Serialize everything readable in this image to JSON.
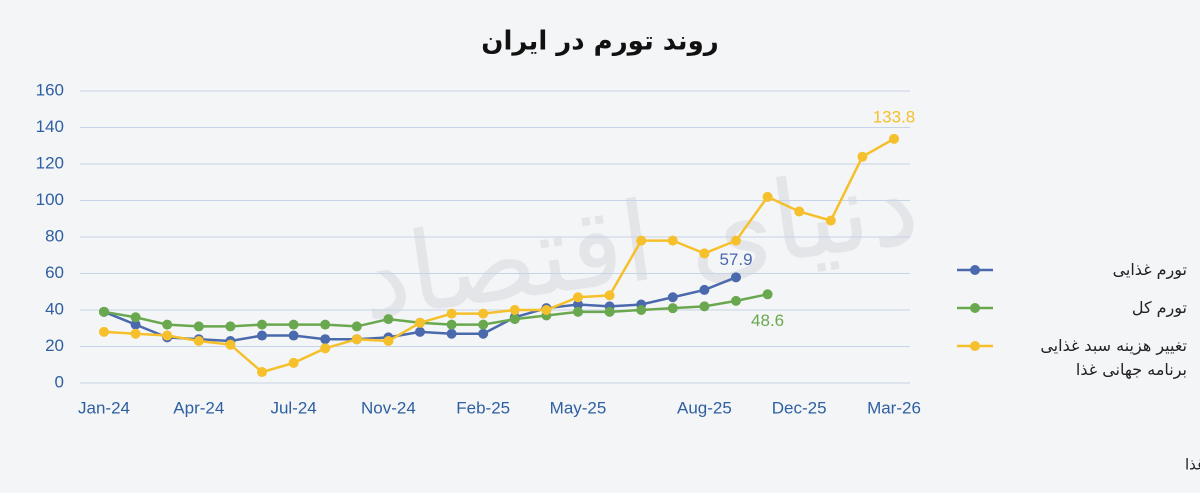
{
  "chart_data": {
    "type": "line",
    "title": "روند تورم در ایران",
    "watermark": "دنیای اقتصاد",
    "source": "منبع: برنامه جهانی غذا",
    "categories": [
      "Jan-24",
      null,
      null,
      "Apr-24",
      null,
      null,
      "Jul-24",
      null,
      null,
      "Nov-24",
      null,
      null,
      "Feb-25",
      null,
      null,
      "May-25",
      null,
      null,
      null,
      "Aug-25",
      null,
      null,
      "Dec-25",
      null,
      null,
      "Mar-26"
    ],
    "series": [
      {
        "name": "تورم غذایی",
        "color": "#4a6aad",
        "values": [
          39,
          32,
          25,
          24,
          23,
          26,
          26,
          24,
          24,
          25,
          28,
          27,
          27,
          36,
          41,
          43,
          42,
          43,
          47,
          51,
          57.9,
          null,
          null,
          null,
          null,
          null
        ]
      },
      {
        "name": "تورم کل",
        "color": "#6aa84f",
        "values": [
          39,
          36,
          32,
          31,
          31,
          32,
          32,
          32,
          31,
          35,
          33,
          32,
          32,
          35,
          37,
          39,
          39,
          40,
          41,
          42,
          45,
          48.6,
          null,
          null,
          null,
          null
        ]
      },
      {
        "name": "تغییر هزینه سبد غذایی برنامه جهانی غذا",
        "color": "#f5c02b",
        "values": [
          28,
          27,
          26,
          23,
          21,
          6,
          11,
          19,
          24,
          23,
          33,
          38,
          38,
          40,
          40,
          47,
          48,
          78,
          78,
          71,
          78,
          102,
          94,
          89,
          124,
          133.8
        ]
      }
    ],
    "ylim": [
      0,
      160
    ],
    "yticks": [
      0,
      20,
      40,
      60,
      80,
      100,
      120,
      140,
      160
    ],
    "grid": true,
    "legend": "right"
  }
}
